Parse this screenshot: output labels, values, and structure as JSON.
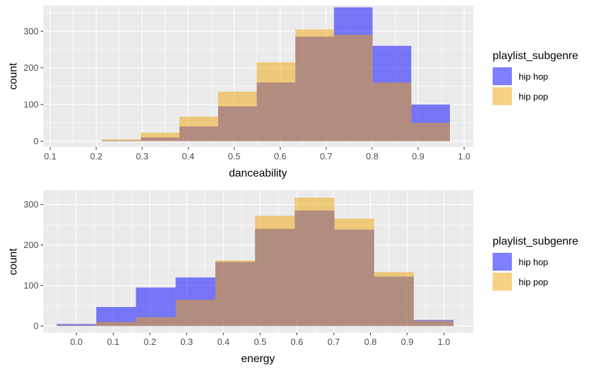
{
  "colors": {
    "panel_bg": "#EBEBEB",
    "grid_major": "#FFFFFF",
    "hip_hop": "#0000FF",
    "hip_pop": "#F0A30A",
    "fill_opacity": 0.5
  },
  "chart_data": [
    {
      "type": "histogram",
      "xlabel": "danceability",
      "ylabel": "count",
      "xlim": [
        0.085,
        1.02
      ],
      "ylim": [
        -16,
        370
      ],
      "xticks": [
        0.1,
        0.2,
        0.3,
        0.4,
        0.5,
        0.6,
        0.7,
        0.8,
        0.9,
        1.0
      ],
      "xtick_labels": [
        "0.1",
        "0.2",
        "0.3",
        "0.4",
        "0.5",
        "0.6",
        "0.7",
        "0.8",
        "0.9",
        "1.0"
      ],
      "yticks": [
        0,
        100,
        200,
        300
      ],
      "ytick_labels": [
        "0",
        "100",
        "200",
        "300"
      ],
      "bin_edges": [
        0.213,
        0.297,
        0.381,
        0.465,
        0.549,
        0.633,
        0.717,
        0.801,
        0.885,
        0.969
      ],
      "grid": true,
      "legend": {
        "title": "playlist_subgenre",
        "position": "right",
        "entries": [
          "hip hop",
          "hip pop"
        ]
      },
      "series": [
        {
          "name": "hip hop",
          "color": "#0000FF",
          "values": [
            2,
            10,
            40,
            95,
            160,
            285,
            365,
            260,
            100
          ]
        },
        {
          "name": "hip pop",
          "color": "#F0A30A",
          "values": [
            5,
            23,
            67,
            135,
            215,
            305,
            290,
            160,
            50
          ]
        }
      ]
    },
    {
      "type": "histogram",
      "xlabel": "energy",
      "ylabel": "count",
      "xlim": [
        -0.09,
        1.08
      ],
      "ylim": [
        -16,
        335
      ],
      "xticks": [
        0.0,
        0.1,
        0.2,
        0.3,
        0.4,
        0.5,
        0.6,
        0.7,
        0.8,
        0.9,
        1.0
      ],
      "xtick_labels": [
        "0.0",
        "0.1",
        "0.2",
        "0.3",
        "0.4",
        "0.5",
        "0.6",
        "0.7",
        "0.8",
        "0.9",
        "1.0"
      ],
      "yticks": [
        0,
        100,
        200,
        300
      ],
      "ytick_labels": [
        "0",
        "100",
        "200",
        "300"
      ],
      "bin_edges": [
        -0.054,
        0.054,
        0.162,
        0.27,
        0.378,
        0.486,
        0.594,
        0.702,
        0.81,
        0.918,
        1.026
      ],
      "grid": true,
      "legend": {
        "title": "playlist_subgenre",
        "position": "right",
        "entries": [
          "hip hop",
          "hip pop"
        ]
      },
      "series": [
        {
          "name": "hip hop",
          "color": "#0000FF",
          "values": [
            5,
            47,
            95,
            120,
            158,
            240,
            285,
            238,
            122,
            15
          ]
        },
        {
          "name": "hip pop",
          "color": "#F0A30A",
          "values": [
            2,
            10,
            22,
            65,
            162,
            272,
            317,
            265,
            133,
            13
          ]
        }
      ]
    }
  ]
}
